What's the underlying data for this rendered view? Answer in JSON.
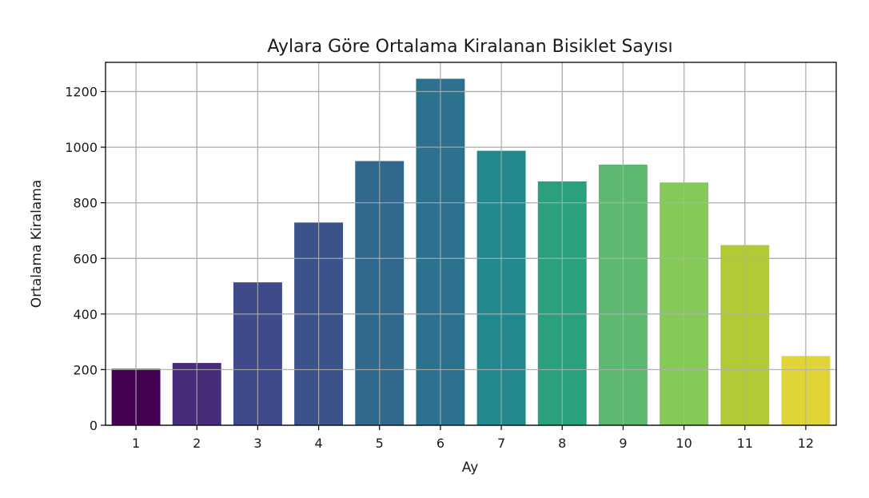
{
  "chart_data": {
    "type": "bar",
    "title": "Aylara Göre Ortalama Kiralanan Bisiklet Sayısı",
    "xlabel": "Ay",
    "ylabel": "Ortalama Kiralama",
    "categories": [
      "1",
      "2",
      "3",
      "4",
      "5",
      "6",
      "7",
      "8",
      "9",
      "10",
      "11",
      "12"
    ],
    "values": [
      203,
      224,
      514,
      729,
      950,
      1246,
      987,
      877,
      937,
      873,
      648,
      249
    ],
    "ylim": [
      0,
      1305
    ],
    "yticks": [
      "0",
      "200",
      "400",
      "600",
      "800",
      "1000",
      "1200"
    ],
    "grid": true,
    "legend": "none",
    "palette": "viridis",
    "colors": [
      "#440154",
      "#482878",
      "#3e4989",
      "#31688e",
      "#26828e",
      "#1f9e89",
      "#35b779",
      "#6ece58",
      "#b5de2b",
      "#fde725"
    ],
    "bar_colors": [
      "#440154",
      "#472c7a",
      "#3e4a89",
      "#3b528b",
      "#31688e",
      "#2c728e",
      "#23888e",
      "#2ba07f",
      "#5db870",
      "#85c959",
      "#b0cb35",
      "#e0d438"
    ]
  }
}
